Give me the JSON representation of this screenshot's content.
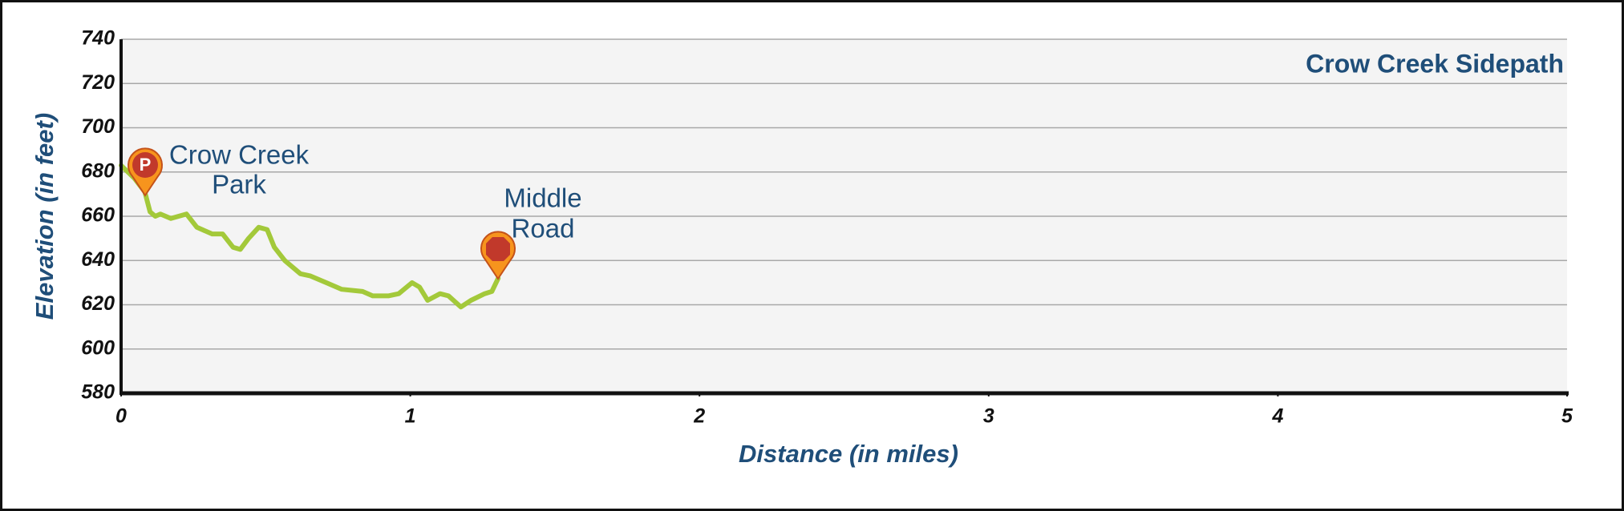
{
  "chart_data": {
    "type": "line",
    "title": "Crow Creek Sidepath",
    "x_label": "Distance (in miles)",
    "y_label": "Elevation (in feet)",
    "x": [
      0,
      0.047,
      0.082,
      0.1,
      0.118,
      0.136,
      0.172,
      0.226,
      0.262,
      0.315,
      0.351,
      0.387,
      0.412,
      0.441,
      0.476,
      0.505,
      0.53,
      0.566,
      0.62,
      0.655,
      0.709,
      0.763,
      0.835,
      0.87,
      0.924,
      0.96,
      1.006,
      1.032,
      1.06,
      1.103,
      1.132,
      1.175,
      1.21,
      1.257,
      1.282,
      1.304
    ],
    "values": [
      683,
      677,
      671,
      662,
      660,
      661,
      659,
      661,
      655,
      652,
      652,
      646,
      645,
      650,
      655,
      654,
      646,
      640,
      634,
      633,
      630,
      627,
      626,
      624,
      624,
      625,
      630,
      628,
      622,
      625,
      624,
      619,
      622,
      625,
      626,
      632
    ],
    "color": "#a3c93a",
    "xlim": [
      0,
      5
    ],
    "ylim": [
      580,
      740
    ],
    "xticks": [
      0,
      1,
      2,
      3,
      4,
      5
    ],
    "yticks": [
      580,
      600,
      620,
      640,
      660,
      680,
      700,
      720,
      740
    ],
    "grid": true,
    "annotations": [
      {
        "lines": [
          "Crow Creek",
          "Park"
        ],
        "icon": "P"
      },
      {
        "lines": [
          "Middle",
          "Road"
        ]
      }
    ]
  }
}
